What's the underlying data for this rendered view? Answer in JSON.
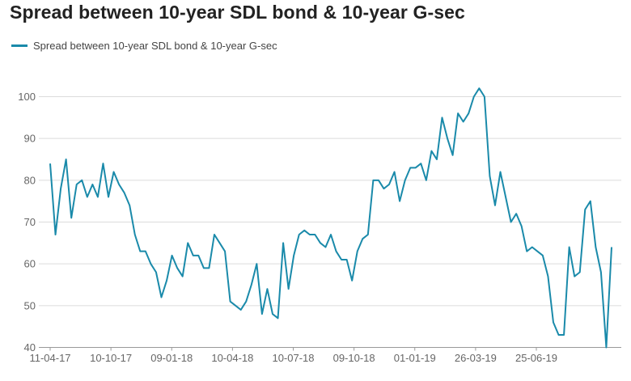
{
  "chart_data": {
    "type": "line",
    "title": "Spread between 10-year SDL bond & 10-year G-sec",
    "xlabel": "",
    "ylabel": "",
    "ylim": [
      40,
      100
    ],
    "yticks": [
      40,
      50,
      60,
      70,
      80,
      90,
      100
    ],
    "x_tick_labels": [
      "11-04-17",
      "10-10-17",
      "09-01-18",
      "10-04-18",
      "10-07-18",
      "09-10-18",
      "01-01-19",
      "26-03-19",
      "25-06-19"
    ],
    "grid": true,
    "legend_position": "top-left",
    "colors": {
      "line": "#1a8aaa"
    },
    "series": [
      {
        "name": "Spread between 10-year SDL bond & 10-year G-sec",
        "values": [
          84,
          67,
          78,
          85,
          71,
          79,
          80,
          76,
          79,
          76,
          84,
          76,
          82,
          79,
          77,
          74,
          67,
          63,
          63,
          60,
          58,
          52,
          56,
          62,
          59,
          57,
          65,
          62,
          62,
          59,
          59,
          67,
          65,
          63,
          51,
          50,
          49,
          51,
          55,
          60,
          48,
          54,
          48,
          47,
          65,
          54,
          62,
          67,
          68,
          67,
          67,
          65,
          64,
          67,
          63,
          61,
          61,
          56,
          63,
          66,
          67,
          80,
          80,
          78,
          79,
          82,
          75,
          80,
          83,
          83,
          84,
          80,
          87,
          85,
          95,
          90,
          86,
          96,
          94,
          96,
          100,
          102,
          100,
          81,
          74,
          82,
          76,
          70,
          72,
          69,
          63,
          64,
          63,
          62,
          57,
          46,
          43,
          43,
          64,
          57,
          58,
          73,
          75,
          64,
          58,
          40,
          64
        ]
      }
    ]
  }
}
